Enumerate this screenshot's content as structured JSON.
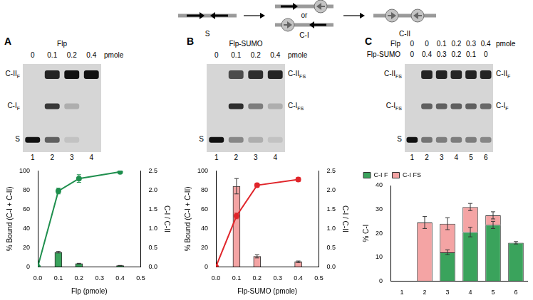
{
  "schematic": {
    "states": [
      "S",
      "C-I",
      "C-II"
    ],
    "alternative": "or"
  },
  "gels": [
    {
      "panel": "A",
      "title": "Flp",
      "rows": [
        {
          "values": [
            0,
            0.1,
            0.2,
            0.4
          ],
          "unit": "pmole"
        }
      ],
      "lanes": [
        "1",
        "2",
        "3",
        "4"
      ],
      "left_labels": [
        {
          "main": "C-II",
          "sub": "F"
        },
        {
          "main": "C-I",
          "sub": "F"
        },
        {
          "main": "S"
        }
      ],
      "right_labels": [
        null,
        null,
        null
      ]
    },
    {
      "panel": "B",
      "title": "Flp-SUMO",
      "rows": [
        {
          "values": [
            0,
            0.1,
            0.2,
            0.4
          ],
          "unit": "pmole"
        }
      ],
      "lanes": [
        "1",
        "2",
        "3",
        "4"
      ],
      "left_labels": [
        null,
        null,
        {
          "main": "S"
        }
      ],
      "right_labels": [
        {
          "main": "C-II",
          "sub": "FS"
        },
        {
          "main": "C-I",
          "sub": "FS"
        },
        null
      ]
    },
    {
      "panel": "C",
      "rows": [
        {
          "label": "Flp",
          "values": [
            0,
            0,
            0.1,
            0.2,
            0.3,
            0.4
          ],
          "unit": "pmole"
        },
        {
          "label": "Flp-SUMO",
          "values": [
            0,
            0.4,
            0.3,
            0.2,
            0.1,
            0
          ]
        }
      ],
      "lanes": [
        "1",
        "2",
        "3",
        "4",
        "5",
        "6"
      ],
      "left_labels": [
        {
          "main": "C-II",
          "sub": "FS"
        },
        {
          "main": "C-I",
          "sub": "FS"
        },
        {
          "main": "S"
        }
      ],
      "right_labels": [
        {
          "main": "C-II",
          "sub": "F"
        },
        {
          "main": "C-I",
          "sub": "F"
        },
        null
      ]
    }
  ],
  "chart_data": [
    {
      "type": "line",
      "x_label": "Flp (pmole)",
      "y_label": "% Bound (C-I + C-II)",
      "y2_label": "C-I / C-II",
      "grid": false,
      "xlim": [
        0,
        0.5
      ],
      "xticks": [
        {
          "value": 0,
          "label": "0.0"
        },
        0.1,
        0.2,
        0.3,
        0.4,
        0.5
      ],
      "ylim": [
        0,
        100
      ],
      "yticks": [
        0,
        20,
        40,
        60,
        80,
        100
      ],
      "y2lim": [
        0,
        2.5
      ],
      "y2ticks": [
        {
          "value": 0,
          "label": "0.0"
        },
        0.5,
        {
          "value": 1,
          "label": "1.0"
        },
        1.5,
        {
          "value": 2,
          "label": "2.0"
        },
        2.5
      ],
      "series": [
        {
          "type": "line",
          "color": "#1f8f4e",
          "marker": "circle",
          "x": [
            0,
            0.1,
            0.2,
            0.4
          ],
          "values": [
            0,
            79,
            92,
            99
          ],
          "errors": [
            null,
            3,
            4,
            1
          ]
        },
        {
          "type": "bar",
          "axis": "y2",
          "color": "#3aa35c",
          "x": [
            0.1,
            0.2,
            0.4
          ],
          "values": [
            0.38,
            0.08,
            0.03
          ],
          "errors": [
            0.02,
            0.01,
            0.005
          ]
        }
      ]
    },
    {
      "type": "line",
      "x_label": "Flp-SUMO (pmole)",
      "y_label": "% Bound (C-I + C-II)",
      "y2_label": "C-I / C-II",
      "grid": false,
      "xlim": [
        0,
        0.5
      ],
      "xticks": [
        {
          "value": 0,
          "label": "0.0"
        },
        0.1,
        0.2,
        0.3,
        0.4,
        0.5
      ],
      "ylim": [
        0,
        100
      ],
      "yticks": [
        0,
        20,
        40,
        60,
        80,
        100
      ],
      "y2lim": [
        0,
        2.5
      ],
      "y2ticks": [
        {
          "value": 0,
          "label": "0.0"
        },
        0.5,
        {
          "value": 1,
          "label": "1.0"
        },
        1.5,
        {
          "value": 2,
          "label": "2.0"
        },
        2.5
      ],
      "series": [
        {
          "type": "line",
          "color": "#e0262b",
          "marker": "circle",
          "x": [
            0,
            0.1,
            0.2,
            0.4
          ],
          "values": [
            0,
            53,
            85,
            91
          ],
          "errors": [
            null,
            3,
            2,
            2
          ]
        },
        {
          "type": "bar",
          "axis": "y2",
          "color": "#f4a4a4",
          "x": [
            0.1,
            0.2,
            0.4
          ],
          "values": [
            2.1,
            0.27,
            0.13
          ],
          "errors": [
            0.2,
            0.04,
            0.02
          ]
        }
      ]
    },
    {
      "type": "bar",
      "stacked": true,
      "y_label": "% C-I",
      "grid": false,
      "legend": "top-left",
      "categories": [
        "1",
        "2",
        "3",
        "4",
        "5",
        "6"
      ],
      "ylim": [
        0,
        40
      ],
      "yticks": [
        0,
        10,
        20,
        30,
        40
      ],
      "series": [
        {
          "name": "C-I F",
          "color": "#3aa35c",
          "values": [
            0,
            0,
            12,
            20.5,
            23.5,
            16
          ],
          "errors": [
            null,
            null,
            1,
            2,
            1.5,
            0.5
          ]
        },
        {
          "name": "C-I FS",
          "color": "#f4a4a4",
          "values": [
            0,
            24.5,
            12,
            10.5,
            4,
            0
          ],
          "errors": [
            null,
            2.5,
            2.5,
            1.5,
            1.5,
            null
          ]
        }
      ]
    }
  ]
}
